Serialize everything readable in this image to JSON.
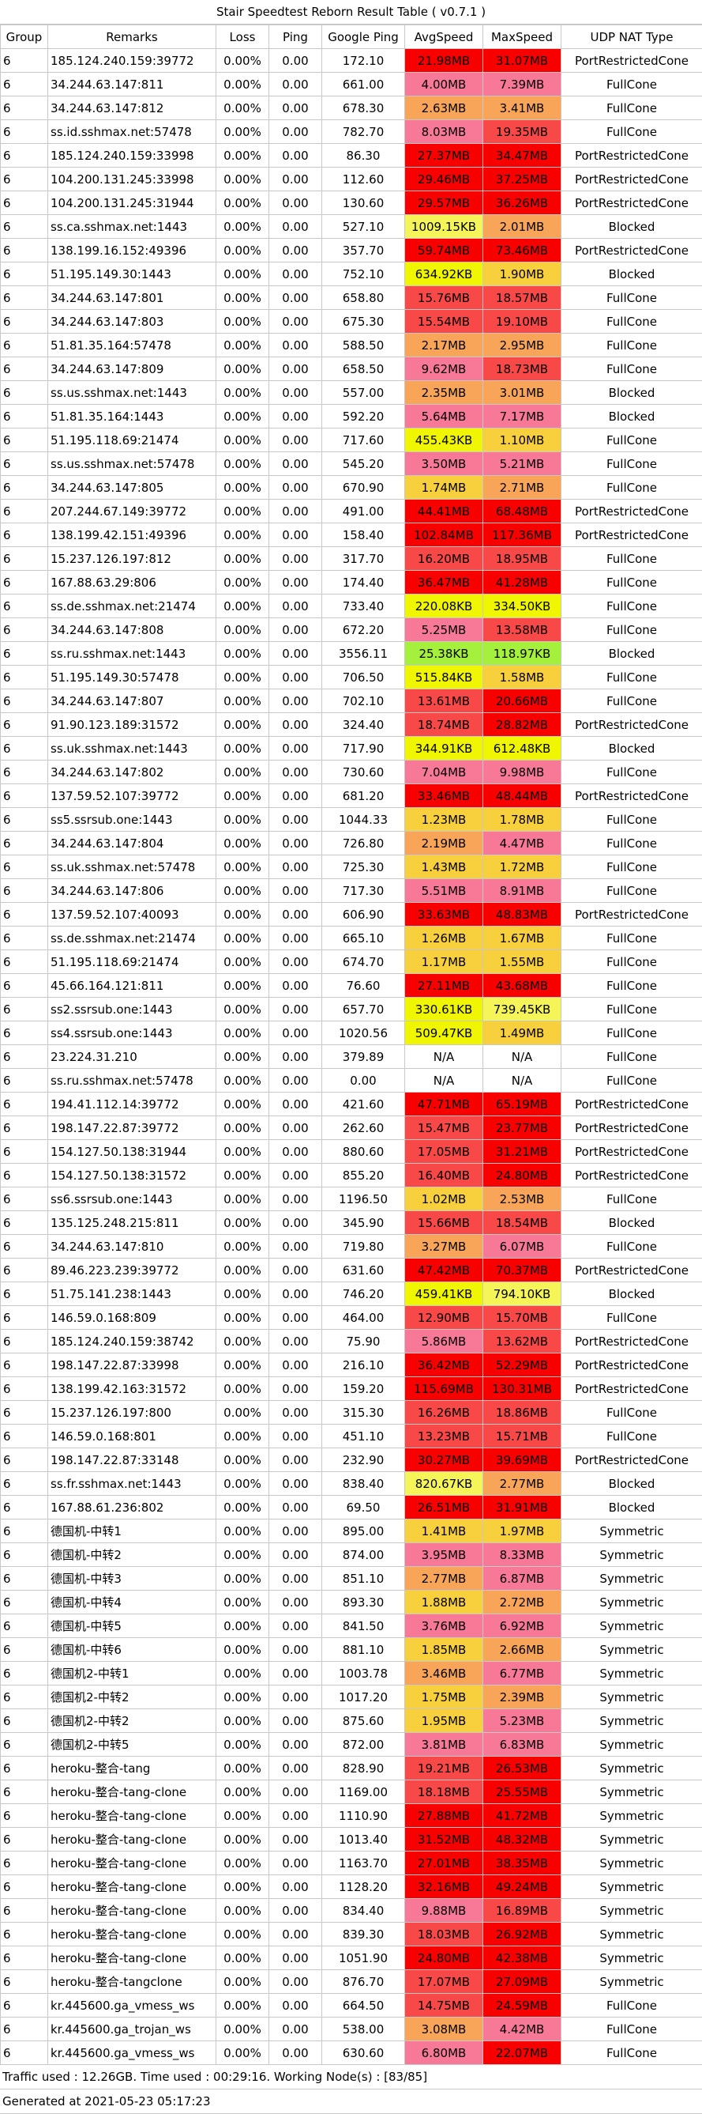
{
  "title": "Stair Speedtest Reborn Result Table ( v0.7.1 )",
  "headers": [
    "Group",
    "Remarks",
    "Loss",
    "Ping",
    "Google Ping",
    "AvgSpeed",
    "MaxSpeed",
    "UDP NAT Type"
  ],
  "rows": [
    [
      "6",
      "185.124.240.159:39772",
      "0.00%",
      "0.00",
      "172.10",
      "21.98MB",
      "31.07MB",
      "PortRestrictedCone"
    ],
    [
      "6",
      "34.244.63.147:811",
      "0.00%",
      "0.00",
      "661.00",
      "4.00MB",
      "7.39MB",
      "FullCone"
    ],
    [
      "6",
      "34.244.63.147:812",
      "0.00%",
      "0.00",
      "678.30",
      "2.63MB",
      "3.41MB",
      "FullCone"
    ],
    [
      "6",
      "ss.id.sshmax.net:57478",
      "0.00%",
      "0.00",
      "782.70",
      "8.03MB",
      "19.35MB",
      "FullCone"
    ],
    [
      "6",
      "185.124.240.159:33998",
      "0.00%",
      "0.00",
      "86.30",
      "27.37MB",
      "34.47MB",
      "PortRestrictedCone"
    ],
    [
      "6",
      "104.200.131.245:33998",
      "0.00%",
      "0.00",
      "112.60",
      "29.46MB",
      "37.25MB",
      "PortRestrictedCone"
    ],
    [
      "6",
      "104.200.131.245:31944",
      "0.00%",
      "0.00",
      "130.60",
      "29.57MB",
      "36.26MB",
      "PortRestrictedCone"
    ],
    [
      "6",
      "ss.ca.sshmax.net:1443",
      "0.00%",
      "0.00",
      "527.10",
      "1009.15KB",
      "2.01MB",
      "Blocked"
    ],
    [
      "6",
      "138.199.16.152:49396",
      "0.00%",
      "0.00",
      "357.70",
      "59.74MB",
      "73.46MB",
      "PortRestrictedCone"
    ],
    [
      "6",
      "51.195.149.30:1443",
      "0.00%",
      "0.00",
      "752.10",
      "634.92KB",
      "1.90MB",
      "Blocked"
    ],
    [
      "6",
      "34.244.63.147:801",
      "0.00%",
      "0.00",
      "658.80",
      "15.76MB",
      "18.57MB",
      "FullCone"
    ],
    [
      "6",
      "34.244.63.147:803",
      "0.00%",
      "0.00",
      "675.30",
      "15.54MB",
      "19.10MB",
      "FullCone"
    ],
    [
      "6",
      "51.81.35.164:57478",
      "0.00%",
      "0.00",
      "588.50",
      "2.17MB",
      "2.95MB",
      "FullCone"
    ],
    [
      "6",
      "34.244.63.147:809",
      "0.00%",
      "0.00",
      "658.50",
      "9.62MB",
      "18.73MB",
      "FullCone"
    ],
    [
      "6",
      "ss.us.sshmax.net:1443",
      "0.00%",
      "0.00",
      "557.00",
      "2.35MB",
      "3.01MB",
      "Blocked"
    ],
    [
      "6",
      "51.81.35.164:1443",
      "0.00%",
      "0.00",
      "592.20",
      "5.64MB",
      "7.17MB",
      "Blocked"
    ],
    [
      "6",
      "51.195.118.69:21474",
      "0.00%",
      "0.00",
      "717.60",
      "455.43KB",
      "1.10MB",
      "FullCone"
    ],
    [
      "6",
      "ss.us.sshmax.net:57478",
      "0.00%",
      "0.00",
      "545.20",
      "3.50MB",
      "5.21MB",
      "FullCone"
    ],
    [
      "6",
      "34.244.63.147:805",
      "0.00%",
      "0.00",
      "670.90",
      "1.74MB",
      "2.71MB",
      "FullCone"
    ],
    [
      "6",
      "207.244.67.149:39772",
      "0.00%",
      "0.00",
      "491.00",
      "44.41MB",
      "68.48MB",
      "PortRestrictedCone"
    ],
    [
      "6",
      "138.199.42.151:49396",
      "0.00%",
      "0.00",
      "158.40",
      "102.84MB",
      "117.36MB",
      "PortRestrictedCone"
    ],
    [
      "6",
      "15.237.126.197:812",
      "0.00%",
      "0.00",
      "317.70",
      "16.20MB",
      "18.95MB",
      "FullCone"
    ],
    [
      "6",
      "167.88.63.29:806",
      "0.00%",
      "0.00",
      "174.40",
      "36.47MB",
      "41.28MB",
      "FullCone"
    ],
    [
      "6",
      "ss.de.sshmax.net:21474",
      "0.00%",
      "0.00",
      "733.40",
      "220.08KB",
      "334.50KB",
      "FullCone"
    ],
    [
      "6",
      "34.244.63.147:808",
      "0.00%",
      "0.00",
      "672.20",
      "5.25MB",
      "13.58MB",
      "FullCone"
    ],
    [
      "6",
      "ss.ru.sshmax.net:1443",
      "0.00%",
      "0.00",
      "3556.11",
      "25.38KB",
      "118.97KB",
      "Blocked"
    ],
    [
      "6",
      "51.195.149.30:57478",
      "0.00%",
      "0.00",
      "706.50",
      "515.84KB",
      "1.58MB",
      "FullCone"
    ],
    [
      "6",
      "34.244.63.147:807",
      "0.00%",
      "0.00",
      "702.10",
      "13.61MB",
      "20.66MB",
      "FullCone"
    ],
    [
      "6",
      "91.90.123.189:31572",
      "0.00%",
      "0.00",
      "324.40",
      "18.74MB",
      "28.82MB",
      "PortRestrictedCone"
    ],
    [
      "6",
      "ss.uk.sshmax.net:1443",
      "0.00%",
      "0.00",
      "717.90",
      "344.91KB",
      "612.48KB",
      "Blocked"
    ],
    [
      "6",
      "34.244.63.147:802",
      "0.00%",
      "0.00",
      "730.60",
      "7.04MB",
      "9.98MB",
      "FullCone"
    ],
    [
      "6",
      "137.59.52.107:39772",
      "0.00%",
      "0.00",
      "681.20",
      "33.46MB",
      "48.44MB",
      "PortRestrictedCone"
    ],
    [
      "6",
      "ss5.ssrsub.one:1443",
      "0.00%",
      "0.00",
      "1044.33",
      "1.23MB",
      "1.78MB",
      "FullCone"
    ],
    [
      "6",
      "34.244.63.147:804",
      "0.00%",
      "0.00",
      "726.80",
      "2.19MB",
      "4.47MB",
      "FullCone"
    ],
    [
      "6",
      "ss.uk.sshmax.net:57478",
      "0.00%",
      "0.00",
      "725.30",
      "1.43MB",
      "1.72MB",
      "FullCone"
    ],
    [
      "6",
      "34.244.63.147:806",
      "0.00%",
      "0.00",
      "717.30",
      "5.51MB",
      "8.91MB",
      "FullCone"
    ],
    [
      "6",
      "137.59.52.107:40093",
      "0.00%",
      "0.00",
      "606.90",
      "33.63MB",
      "48.83MB",
      "PortRestrictedCone"
    ],
    [
      "6",
      "ss.de.sshmax.net:21474",
      "0.00%",
      "0.00",
      "665.10",
      "1.26MB",
      "1.67MB",
      "FullCone"
    ],
    [
      "6",
      "51.195.118.69:21474",
      "0.00%",
      "0.00",
      "674.70",
      "1.17MB",
      "1.55MB",
      "FullCone"
    ],
    [
      "6",
      "45.66.164.121:811",
      "0.00%",
      "0.00",
      "76.60",
      "27.11MB",
      "43.68MB",
      "FullCone"
    ],
    [
      "6",
      "ss2.ssrsub.one:1443",
      "0.00%",
      "0.00",
      "657.70",
      "330.61KB",
      "739.45KB",
      "FullCone"
    ],
    [
      "6",
      "ss4.ssrsub.one:1443",
      "0.00%",
      "0.00",
      "1020.56",
      "509.47KB",
      "1.49MB",
      "FullCone"
    ],
    [
      "6",
      "23.224.31.210",
      "0.00%",
      "0.00",
      "379.89",
      "N/A",
      "N/A",
      "FullCone"
    ],
    [
      "6",
      "ss.ru.sshmax.net:57478",
      "0.00%",
      "0.00",
      "0.00",
      "N/A",
      "N/A",
      "FullCone"
    ],
    [
      "6",
      "194.41.112.14:39772",
      "0.00%",
      "0.00",
      "421.60",
      "47.71MB",
      "65.19MB",
      "PortRestrictedCone"
    ],
    [
      "6",
      "198.147.22.87:39772",
      "0.00%",
      "0.00",
      "262.60",
      "15.47MB",
      "23.77MB",
      "PortRestrictedCone"
    ],
    [
      "6",
      "154.127.50.138:31944",
      "0.00%",
      "0.00",
      "880.60",
      "17.05MB",
      "31.21MB",
      "PortRestrictedCone"
    ],
    [
      "6",
      "154.127.50.138:31572",
      "0.00%",
      "0.00",
      "855.20",
      "16.40MB",
      "24.80MB",
      "PortRestrictedCone"
    ],
    [
      "6",
      "ss6.ssrsub.one:1443",
      "0.00%",
      "0.00",
      "1196.50",
      "1.02MB",
      "2.53MB",
      "FullCone"
    ],
    [
      "6",
      "135.125.248.215:811",
      "0.00%",
      "0.00",
      "345.90",
      "15.66MB",
      "18.54MB",
      "Blocked"
    ],
    [
      "6",
      "34.244.63.147:810",
      "0.00%",
      "0.00",
      "719.80",
      "3.27MB",
      "6.07MB",
      "FullCone"
    ],
    [
      "6",
      "89.46.223.239:39772",
      "0.00%",
      "0.00",
      "631.60",
      "47.42MB",
      "70.37MB",
      "PortRestrictedCone"
    ],
    [
      "6",
      "51.75.141.238:1443",
      "0.00%",
      "0.00",
      "746.20",
      "459.41KB",
      "794.10KB",
      "Blocked"
    ],
    [
      "6",
      "146.59.0.168:809",
      "0.00%",
      "0.00",
      "464.00",
      "12.90MB",
      "15.70MB",
      "FullCone"
    ],
    [
      "6",
      "185.124.240.159:38742",
      "0.00%",
      "0.00",
      "75.90",
      "5.86MB",
      "13.62MB",
      "PortRestrictedCone"
    ],
    [
      "6",
      "198.147.22.87:33998",
      "0.00%",
      "0.00",
      "216.10",
      "36.42MB",
      "52.29MB",
      "PortRestrictedCone"
    ],
    [
      "6",
      "138.199.42.163:31572",
      "0.00%",
      "0.00",
      "159.20",
      "115.69MB",
      "130.31MB",
      "PortRestrictedCone"
    ],
    [
      "6",
      "15.237.126.197:800",
      "0.00%",
      "0.00",
      "315.30",
      "16.26MB",
      "18.86MB",
      "FullCone"
    ],
    [
      "6",
      "146.59.0.168:801",
      "0.00%",
      "0.00",
      "451.10",
      "13.23MB",
      "15.71MB",
      "FullCone"
    ],
    [
      "6",
      "198.147.22.87:33148",
      "0.00%",
      "0.00",
      "232.90",
      "30.27MB",
      "39.69MB",
      "PortRestrictedCone"
    ],
    [
      "6",
      "ss.fr.sshmax.net:1443",
      "0.00%",
      "0.00",
      "838.40",
      "820.67KB",
      "2.77MB",
      "Blocked"
    ],
    [
      "6",
      "167.88.61.236:802",
      "0.00%",
      "0.00",
      "69.50",
      "26.51MB",
      "31.91MB",
      "Blocked"
    ],
    [
      "6",
      "德国机-中转1",
      "0.00%",
      "0.00",
      "895.00",
      "1.41MB",
      "1.97MB",
      "Symmetric"
    ],
    [
      "6",
      "德国机-中转2",
      "0.00%",
      "0.00",
      "874.00",
      "3.95MB",
      "8.33MB",
      "Symmetric"
    ],
    [
      "6",
      "德国机-中转3",
      "0.00%",
      "0.00",
      "851.10",
      "2.77MB",
      "6.87MB",
      "Symmetric"
    ],
    [
      "6",
      "德国机-中转4",
      "0.00%",
      "0.00",
      "893.30",
      "1.88MB",
      "2.72MB",
      "Symmetric"
    ],
    [
      "6",
      "德国机-中转5",
      "0.00%",
      "0.00",
      "841.50",
      "3.76MB",
      "6.92MB",
      "Symmetric"
    ],
    [
      "6",
      "德国机-中转6",
      "0.00%",
      "0.00",
      "881.10",
      "1.85MB",
      "2.66MB",
      "Symmetric"
    ],
    [
      "6",
      "德国机2-中转1",
      "0.00%",
      "0.00",
      "1003.78",
      "3.46MB",
      "6.77MB",
      "Symmetric"
    ],
    [
      "6",
      "德国机2-中转2",
      "0.00%",
      "0.00",
      "1017.20",
      "1.75MB",
      "2.39MB",
      "Symmetric"
    ],
    [
      "6",
      "德国机2-中转2",
      "0.00%",
      "0.00",
      "875.60",
      "1.95MB",
      "5.23MB",
      "Symmetric"
    ],
    [
      "6",
      "德国机2-中转5",
      "0.00%",
      "0.00",
      "872.00",
      "3.81MB",
      "6.83MB",
      "Symmetric"
    ],
    [
      "6",
      "heroku-整合-tang",
      "0.00%",
      "0.00",
      "828.90",
      "19.21MB",
      "26.53MB",
      "Symmetric"
    ],
    [
      "6",
      "heroku-整合-tang-clone",
      "0.00%",
      "0.00",
      "1169.00",
      "18.18MB",
      "25.55MB",
      "Symmetric"
    ],
    [
      "6",
      "heroku-整合-tang-clone",
      "0.00%",
      "0.00",
      "1110.90",
      "27.88MB",
      "41.72MB",
      "Symmetric"
    ],
    [
      "6",
      "heroku-整合-tang-clone",
      "0.00%",
      "0.00",
      "1013.40",
      "31.52MB",
      "48.32MB",
      "Symmetric"
    ],
    [
      "6",
      "heroku-整合-tang-clone",
      "0.00%",
      "0.00",
      "1163.70",
      "27.01MB",
      "38.35MB",
      "Symmetric"
    ],
    [
      "6",
      "heroku-整合-tang-clone",
      "0.00%",
      "0.00",
      "1128.20",
      "32.16MB",
      "49.24MB",
      "Symmetric"
    ],
    [
      "6",
      "heroku-整合-tang-clone",
      "0.00%",
      "0.00",
      "834.40",
      "9.88MB",
      "16.89MB",
      "Symmetric"
    ],
    [
      "6",
      "heroku-整合-tang-clone",
      "0.00%",
      "0.00",
      "839.30",
      "18.03MB",
      "26.92MB",
      "Symmetric"
    ],
    [
      "6",
      "heroku-整合-tang-clone",
      "0.00%",
      "0.00",
      "1051.90",
      "24.80MB",
      "42.38MB",
      "Symmetric"
    ],
    [
      "6",
      "heroku-整合-tangclone",
      "0.00%",
      "0.00",
      "876.70",
      "17.07MB",
      "27.09MB",
      "Symmetric"
    ],
    [
      "6",
      "kr.445600.ga_vmess_ws",
      "0.00%",
      "0.00",
      "664.50",
      "14.75MB",
      "24.59MB",
      "FullCone"
    ],
    [
      "6",
      "kr.445600.ga_trojan_ws",
      "0.00%",
      "0.00",
      "538.00",
      "3.08MB",
      "4.42MB",
      "FullCone"
    ],
    [
      "6",
      "kr.445600.ga_vmess_ws",
      "0.00%",
      "0.00",
      "630.60",
      "6.80MB",
      "22.07MB",
      "FullCone"
    ]
  ],
  "speed_colors": {
    "na": "#ffffff",
    "kb_low": "#a5f03c",
    "kb_mid": "#f0f500",
    "kb_high": "#f5f55a",
    "mb_1": "#f8cf3c",
    "mb_2": "#f8a55a",
    "mb_4": "#f87898",
    "mb_10": "#f84848",
    "mb_20": "#f80000"
  },
  "footer": {
    "traffic": "Traffic used : 12.26GB. Time used : 00:29:16. Working Node(s) : [83/85]",
    "generated": "Generated at 2021-05-23 05:17:23"
  }
}
